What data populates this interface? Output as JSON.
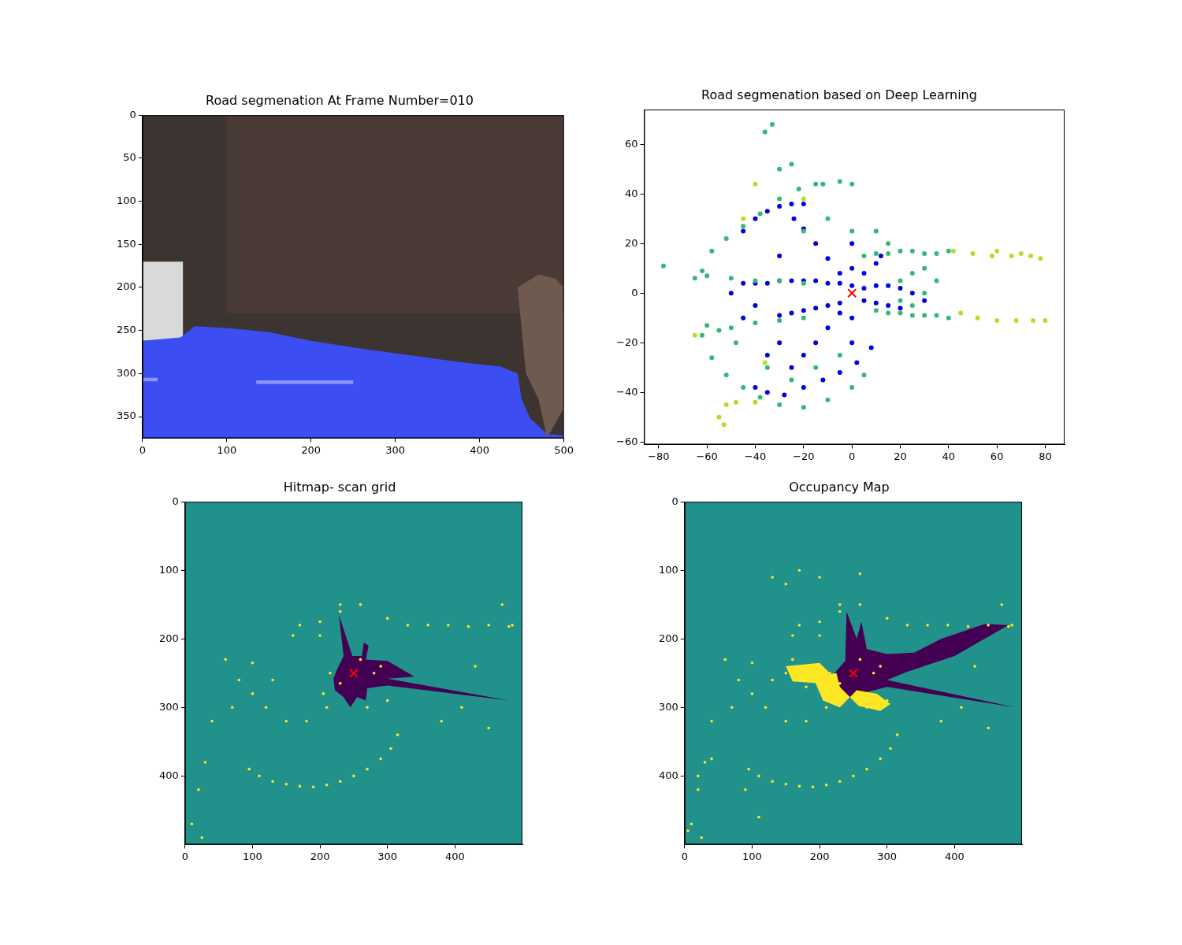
{
  "chart_data": [
    {
      "type": "image",
      "title": "Road segmenation At Frame Number=010",
      "xlim": [
        0,
        500
      ],
      "ylim": [
        375,
        0
      ],
      "xticks": [
        0,
        100,
        200,
        300,
        400,
        500
      ],
      "yticks": [
        0,
        50,
        100,
        150,
        200,
        250,
        300,
        350
      ],
      "grid": false,
      "series": [
        {
          "type": "area",
          "color": "#3b3431",
          "x": [
            0,
            500,
            500,
            0
          ],
          "values": [
            0,
            0,
            375,
            375
          ]
        },
        {
          "type": "area",
          "color": "#4a3a36",
          "x": [
            100,
            500,
            500,
            100
          ],
          "values": [
            0,
            0,
            230,
            230
          ]
        },
        {
          "type": "area",
          "color": "#d9d9d9",
          "x": [
            0,
            48,
            48,
            0
          ],
          "values": [
            170,
            170,
            262,
            262
          ]
        },
        {
          "type": "area",
          "color": "#3c4df2",
          "x": [
            0,
            45,
            62,
            100,
            150,
            200,
            260,
            320,
            380,
            425,
            445,
            450,
            460,
            480,
            500,
            500,
            0
          ],
          "values": [
            262,
            258,
            245,
            247,
            252,
            262,
            271,
            279,
            287,
            292,
            300,
            330,
            352,
            370,
            372,
            375,
            375
          ]
        },
        {
          "type": "area",
          "color": "#8a95ff",
          "x": [
            0,
            18,
            18,
            0
          ],
          "values": [
            305,
            305,
            309,
            309
          ]
        },
        {
          "type": "area",
          "color": "#8a95ff",
          "x": [
            135,
            250,
            250,
            135
          ],
          "values": [
            308,
            308,
            312,
            312
          ]
        },
        {
          "type": "area",
          "color": "#6e5a4e",
          "x": [
            445,
            470,
            490,
            500,
            500,
            480,
            470,
            455
          ],
          "values": [
            200,
            185,
            190,
            200,
            340,
            375,
            330,
            300
          ]
        }
      ]
    },
    {
      "type": "scatter",
      "title": "Road segmenation based on Deep Learning",
      "xlim": [
        -86,
        88
      ],
      "ylim": [
        -61,
        74
      ],
      "xticks": [
        {
          "value": -80,
          "label": "−80"
        },
        {
          "value": -60,
          "label": "−60"
        },
        {
          "value": -40,
          "label": "−40"
        },
        {
          "value": -20,
          "label": "−20"
        },
        0,
        20,
        40,
        60,
        80
      ],
      "yticks": [
        {
          "value": -60,
          "label": "−60"
        },
        {
          "value": -40,
          "label": "−40"
        },
        {
          "value": -20,
          "label": "−20"
        },
        0,
        20,
        40,
        60
      ],
      "grid": false,
      "series": [
        {
          "type": "scatter",
          "marker": "circle",
          "color": "#35b779",
          "x": [
            5,
            10,
            15,
            20,
            25,
            30,
            35,
            40,
            10,
            15,
            20,
            25,
            30,
            35,
            40,
            20,
            25,
            30,
            20,
            25,
            30,
            35,
            -60,
            -50,
            -40,
            -30,
            -20,
            -60,
            -50,
            -40,
            -30,
            -20,
            -62,
            -58,
            -52,
            -45,
            -38,
            -30,
            -22,
            -12,
            -5,
            0,
            -62,
            -58,
            -52,
            -45,
            -38,
            -30,
            -20,
            -10,
            0,
            5,
            -78,
            -65,
            -36,
            -33,
            -30,
            -25,
            -15,
            -55,
            -48,
            -35,
            -25,
            10,
            15,
            -10,
            -20,
            0,
            -5,
            -15
          ],
          "values": [
            15,
            16,
            16,
            17,
            17,
            16,
            16,
            17,
            -7,
            -8,
            -8,
            -9,
            -9,
            -9,
            -10,
            5,
            8,
            10,
            -3,
            -5,
            0,
            5,
            7,
            6,
            5,
            5,
            4,
            -13,
            -14,
            -12,
            -11,
            -10,
            9,
            17,
            22,
            27,
            32,
            38,
            42,
            44,
            45,
            44,
            -17,
            -26,
            -33,
            -38,
            -42,
            -45,
            -46,
            -43,
            -38,
            -33,
            11,
            6,
            65,
            68,
            50,
            52,
            44,
            -15,
            -20,
            -30,
            -35,
            25,
            20,
            30,
            25,
            25,
            -25,
            -30
          ]
        },
        {
          "type": "scatter",
          "marker": "circle",
          "color": "#b5de2b",
          "x": [
            42,
            50,
            58,
            66,
            74,
            78,
            45,
            52,
            60,
            68,
            75,
            80,
            60,
            70,
            -52,
            -55,
            -53,
            -48,
            -40,
            -36,
            -40,
            -20,
            -65,
            -45
          ],
          "values": [
            17,
            16,
            15,
            15,
            15,
            14,
            -8,
            -10,
            -11,
            -11,
            -11,
            -11,
            17,
            16,
            -45,
            -50,
            -53,
            -44,
            -44,
            -28,
            44,
            38,
            -17,
            30
          ]
        },
        {
          "type": "scatter",
          "marker": "circle",
          "color": "#0000e0",
          "x": [
            0,
            -5,
            -10,
            -15,
            -20,
            -25,
            -30,
            -35,
            -40,
            -45,
            -5,
            -10,
            -15,
            -20,
            -25,
            -30,
            -5,
            -10,
            -15,
            -20,
            -24,
            -5,
            -10,
            -15,
            -20,
            -25,
            0,
            0,
            0,
            0,
            5,
            10,
            15,
            20,
            25,
            30,
            5,
            10,
            15,
            20,
            5,
            10,
            12,
            -45,
            -40,
            -35,
            -30,
            -25,
            -20,
            -40,
            -35,
            -28,
            -20,
            -12,
            -5,
            2,
            8,
            -40,
            -50,
            -45,
            -30,
            -30,
            -35
          ],
          "values": [
            3,
            4,
            4,
            5,
            5,
            5,
            5,
            4,
            4,
            4,
            -4,
            -5,
            -6,
            -7,
            -8,
            -9,
            8,
            14,
            20,
            26,
            30,
            -8,
            -14,
            -20,
            -25,
            -30,
            10,
            20,
            -10,
            -20,
            2,
            3,
            3,
            2,
            0,
            -3,
            -3,
            -4,
            -5,
            -6,
            8,
            12,
            15,
            25,
            30,
            33,
            35,
            36,
            36,
            -38,
            -40,
            -41,
            -38,
            -35,
            -32,
            -28,
            -22,
            -5,
            0,
            -10,
            15,
            -20,
            -25
          ]
        },
        {
          "type": "scatter",
          "marker": "x",
          "color": "#ff0000",
          "x": [
            0
          ],
          "values": [
            0
          ]
        }
      ]
    },
    {
      "type": "map",
      "title": "Hitmap- scan grid",
      "xlim": [
        0,
        500
      ],
      "ylim": [
        500,
        0
      ],
      "xticks": [
        0,
        100,
        200,
        300,
        400
      ],
      "yticks": [
        0,
        100,
        200,
        300,
        400
      ],
      "grid": false,
      "series": [
        {
          "type": "area",
          "color": "#21918c",
          "x": [
            0,
            500,
            500,
            0
          ],
          "values": [
            0,
            0,
            500,
            500
          ]
        },
        {
          "type": "area",
          "color": "#440154",
          "x": [
            225,
            235,
            228,
            248,
            262,
            265,
            272,
            268,
            300,
            340,
            300,
            480,
            300,
            270,
            268,
            255,
            245,
            235,
            222,
            220
          ],
          "values": [
            245,
            225,
            165,
            225,
            225,
            205,
            210,
            230,
            232,
            255,
            258,
            290,
            268,
            272,
            290,
            285,
            300,
            285,
            275,
            258
          ]
        },
        {
          "type": "scatter",
          "marker": "circle",
          "color": "#fde725",
          "x": [
            95,
            110,
            130,
            150,
            170,
            190,
            210,
            230,
            250,
            270,
            290,
            305,
            315,
            170,
            200,
            230,
            260,
            300,
            330,
            360,
            390,
            420,
            450,
            480,
            200,
            160,
            230,
            470,
            485,
            60,
            80,
            100,
            120,
            150,
            180,
            210,
            130,
            100,
            70,
            40,
            30,
            20,
            10,
            25,
            215,
            230,
            280,
            270,
            260,
            205,
            290,
            300,
            410,
            430,
            380,
            450
          ],
          "values": [
            390,
            400,
            408,
            412,
            415,
            416,
            413,
            408,
            400,
            390,
            375,
            360,
            340,
            180,
            175,
            160,
            150,
            170,
            180,
            180,
            180,
            182,
            180,
            182,
            195,
            195,
            150,
            150,
            180,
            230,
            260,
            280,
            300,
            320,
            320,
            300,
            260,
            235,
            300,
            320,
            380,
            420,
            470,
            490,
            250,
            265,
            250,
            300,
            230,
            280,
            240,
            290,
            300,
            240,
            320,
            330
          ]
        },
        {
          "type": "scatter",
          "marker": "x",
          "color": "#ff0000",
          "x": [
            250
          ],
          "values": [
            250
          ]
        }
      ]
    },
    {
      "type": "map",
      "title": "Occupancy Map",
      "xlim": [
        0,
        500
      ],
      "ylim": [
        500,
        0
      ],
      "xticks": [
        0,
        100,
        200,
        300,
        400
      ],
      "yticks": [
        0,
        100,
        200,
        300,
        400
      ],
      "grid": false,
      "series": [
        {
          "type": "area",
          "color": "#21918c",
          "x": [
            0,
            500,
            500,
            0
          ],
          "values": [
            0,
            0,
            500,
            500
          ]
        },
        {
          "type": "area",
          "color": "#440154",
          "x": [
            222,
            238,
            240,
            255,
            262,
            270,
            300,
            340,
            380,
            445,
            480,
            400,
            330,
            300,
            490,
            300,
            268,
            258,
            245,
            232,
            225
          ],
          "values": [
            250,
            232,
            160,
            200,
            175,
            215,
            222,
            220,
            200,
            178,
            180,
            225,
            248,
            260,
            300,
            270,
            278,
            295,
            285,
            275,
            265
          ]
        },
        {
          "type": "area",
          "color": "#fde725",
          "x": [
            190,
            225,
            230,
            245,
            258,
            290,
            305,
            285,
            255,
            230,
            205
          ],
          "values": [
            255,
            250,
            270,
            285,
            298,
            305,
            295,
            280,
            275,
            300,
            290
          ]
        },
        {
          "type": "area",
          "color": "#fde725",
          "x": [
            150,
            200,
            215,
            200,
            160
          ],
          "values": [
            240,
            235,
            250,
            265,
            262
          ]
        },
        {
          "type": "scatter",
          "marker": "circle",
          "color": "#fde725",
          "x": [
            95,
            110,
            130,
            150,
            170,
            190,
            210,
            230,
            250,
            270,
            290,
            305,
            315,
            170,
            200,
            230,
            260,
            300,
            330,
            360,
            390,
            420,
            450,
            480,
            200,
            160,
            230,
            470,
            485,
            60,
            80,
            100,
            120,
            150,
            180,
            210,
            130,
            100,
            70,
            40,
            30,
            20,
            10,
            25,
            215,
            230,
            280,
            270,
            260,
            205,
            290,
            300,
            410,
            430,
            380,
            450,
            40,
            20,
            5,
            90,
            110,
            130,
            150,
            170,
            200,
            260,
            160,
            150,
            180
          ],
          "values": [
            390,
            400,
            408,
            412,
            415,
            416,
            413,
            408,
            400,
            390,
            375,
            360,
            340,
            180,
            175,
            160,
            150,
            170,
            180,
            180,
            180,
            182,
            180,
            182,
            195,
            195,
            150,
            150,
            180,
            230,
            260,
            280,
            300,
            320,
            320,
            300,
            260,
            235,
            300,
            320,
            380,
            420,
            470,
            490,
            250,
            265,
            250,
            300,
            230,
            280,
            240,
            290,
            300,
            240,
            320,
            330,
            375,
            400,
            480,
            420,
            460,
            110,
            120,
            100,
            110,
            105,
            230,
            250,
            270
          ]
        },
        {
          "type": "scatter",
          "marker": "x",
          "color": "#ff0000",
          "x": [
            250
          ],
          "values": [
            250
          ]
        }
      ]
    }
  ]
}
